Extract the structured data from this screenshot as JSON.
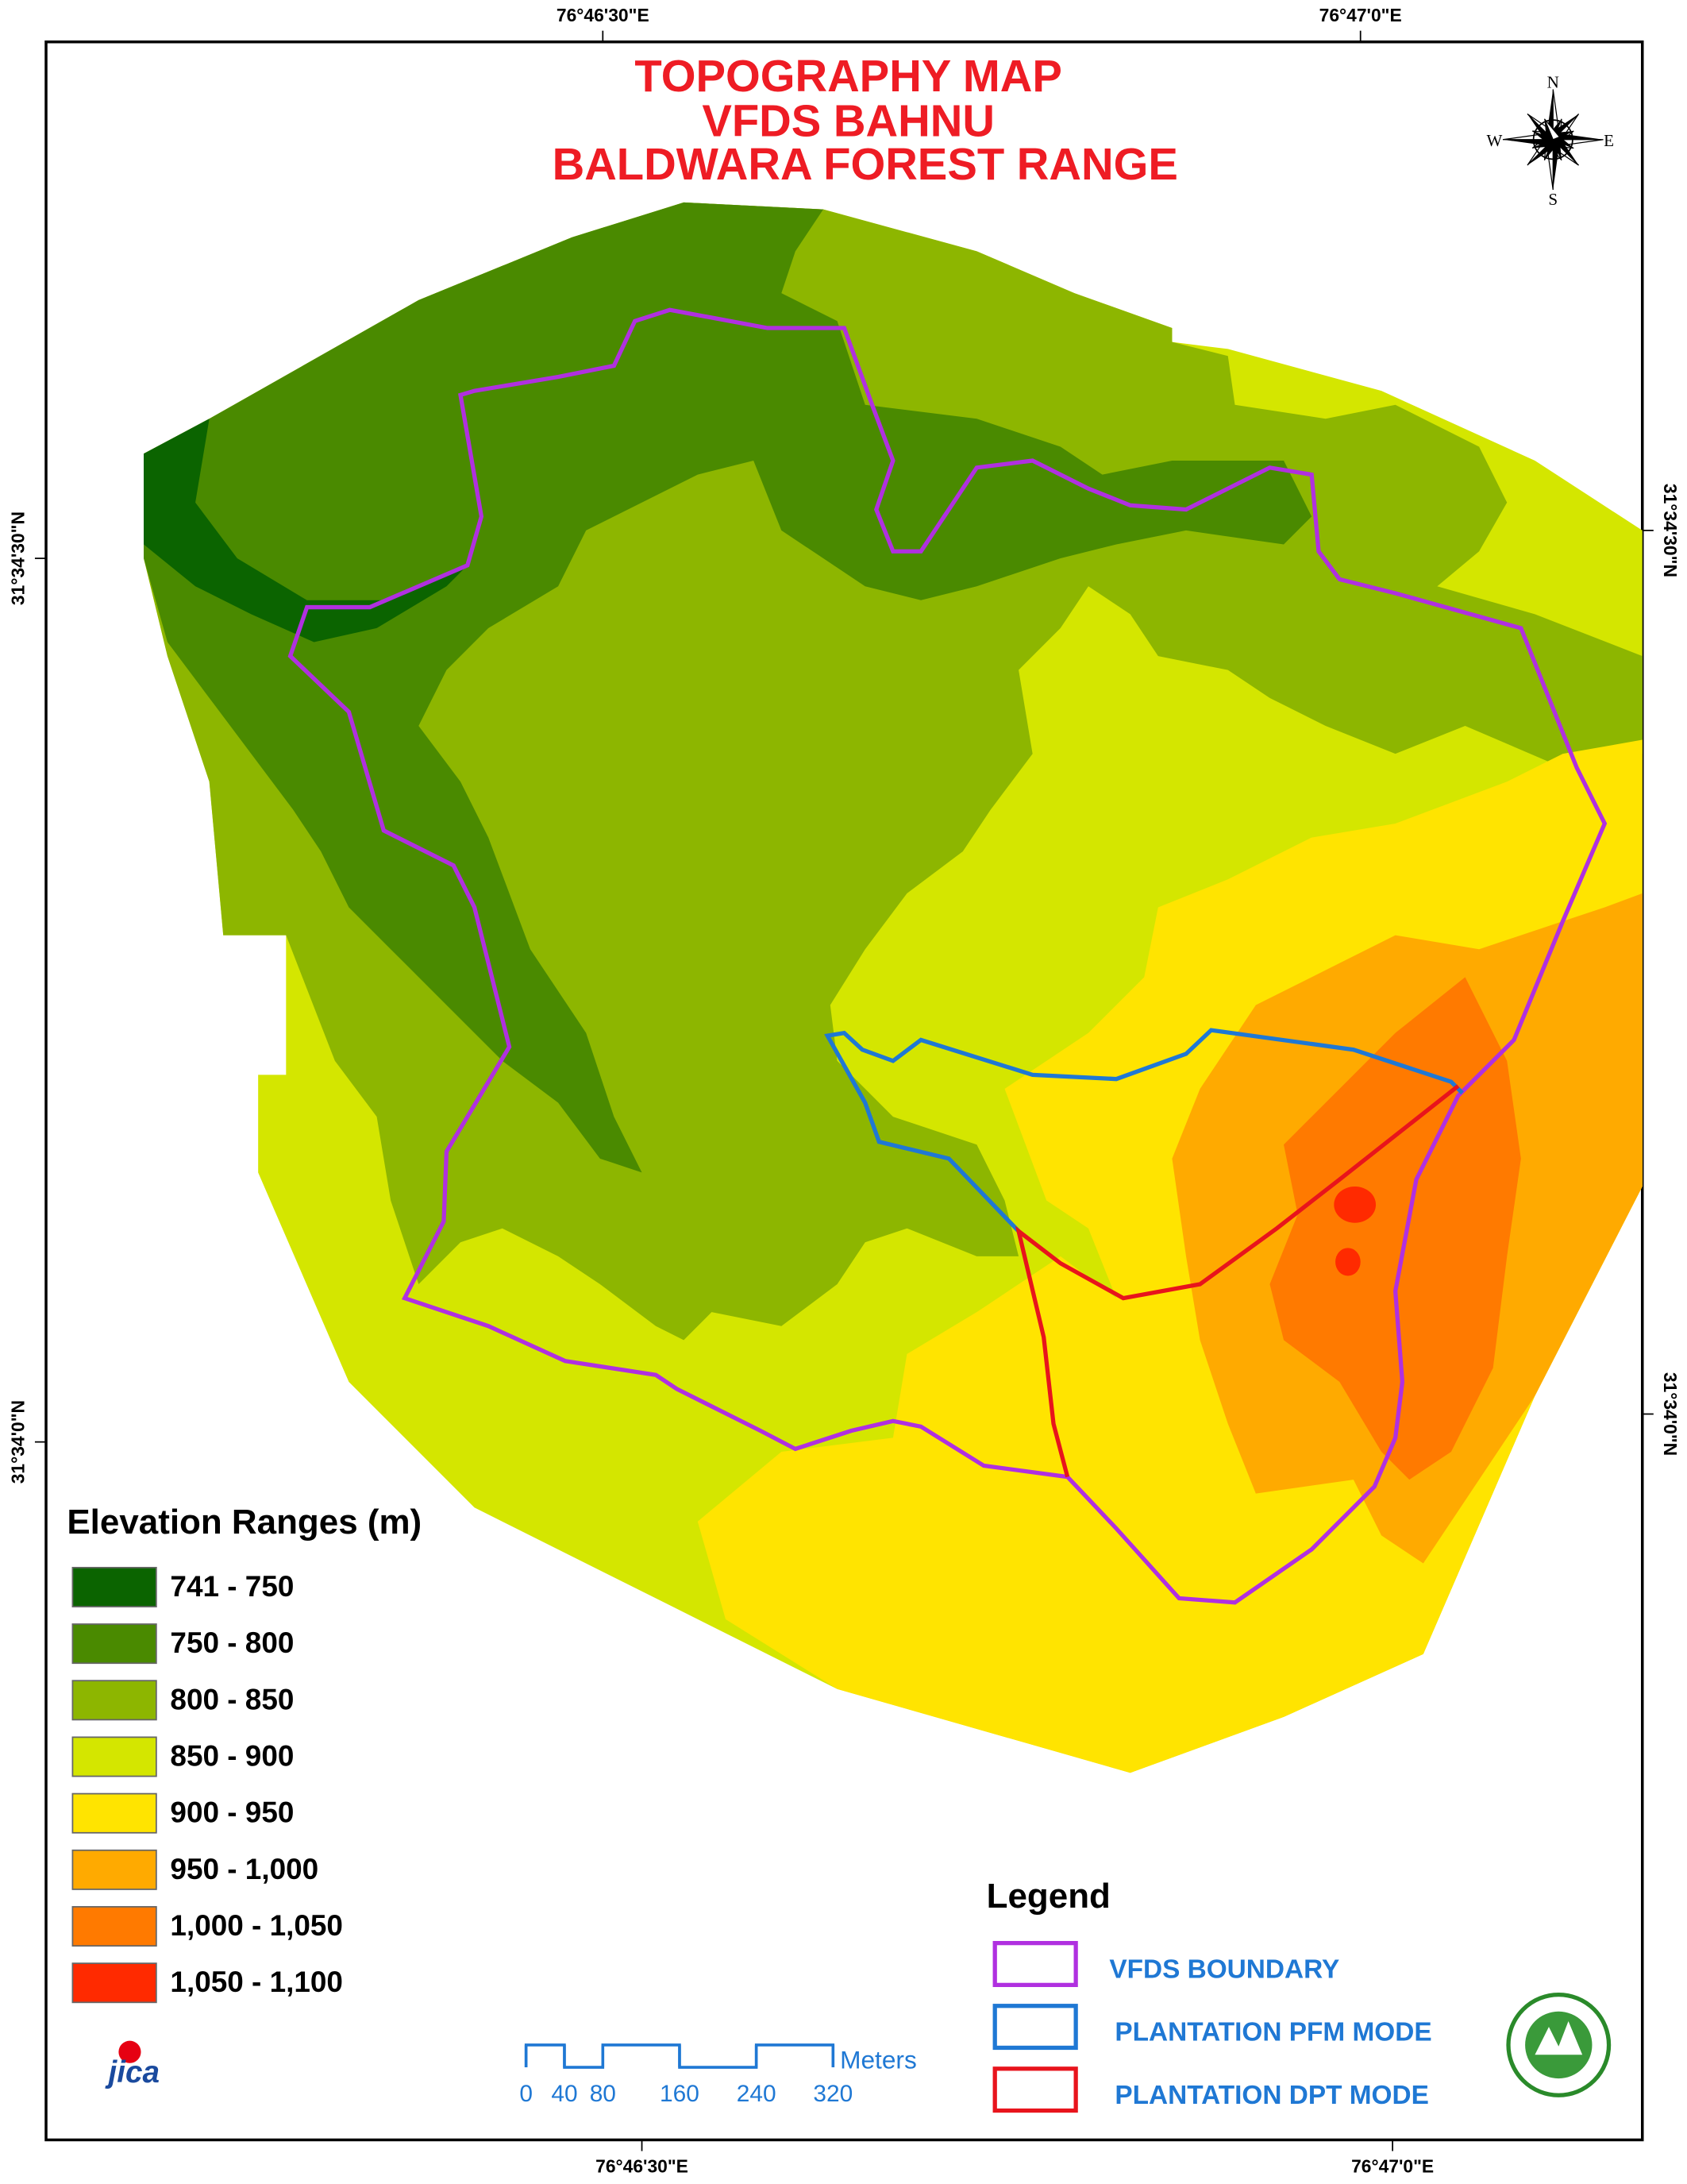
{
  "map": {
    "title": [
      "TOPOGRAPHY MAP",
      "VFDS BAHNU",
      "BALDWARA FOREST RANGE"
    ],
    "coordinates": {
      "top": [
        "76°46'30\"E",
        "76°47'0\"E"
      ],
      "bottom": [
        "76°46'30\"E",
        "76°47'0\"E"
      ],
      "left": [
        "31°34'30\"N",
        "31°34'0\"N"
      ],
      "right": [
        "31°34'30\"N",
        "31°34'0\"N"
      ]
    },
    "compass": {
      "north": "N",
      "south": "S",
      "east": "E",
      "west": "W"
    },
    "elevation_legend": {
      "title": "Elevation Ranges (m)",
      "items": [
        {
          "label": "741 - 750",
          "color": "#0b6400"
        },
        {
          "label": "750 - 800",
          "color": "#4a8a00"
        },
        {
          "label": "800 - 850",
          "color": "#8db600"
        },
        {
          "label": "850 - 900",
          "color": "#d4e600"
        },
        {
          "label": "900 - 950",
          "color": "#ffe400"
        },
        {
          "label": "950 - 1,000",
          "color": "#ffaa00"
        },
        {
          "label": "1,000 - 1,050",
          "color": "#ff7a00"
        },
        {
          "label": "1,050 - 1,100",
          "color": "#ff2a00"
        }
      ]
    },
    "line_legend": {
      "title": "Legend",
      "items": [
        {
          "label": "VFDS BOUNDARY",
          "color": "#b030e0"
        },
        {
          "label": "PLANTATION PFM MODE",
          "color": "#1f78d4"
        },
        {
          "label": "PLANTATION DPT MODE",
          "color": "#e8141c"
        }
      ]
    },
    "scale_bar": {
      "ticks": [
        0,
        40,
        80,
        160,
        240,
        320
      ],
      "unit": "Meters"
    },
    "logo": "jica"
  }
}
